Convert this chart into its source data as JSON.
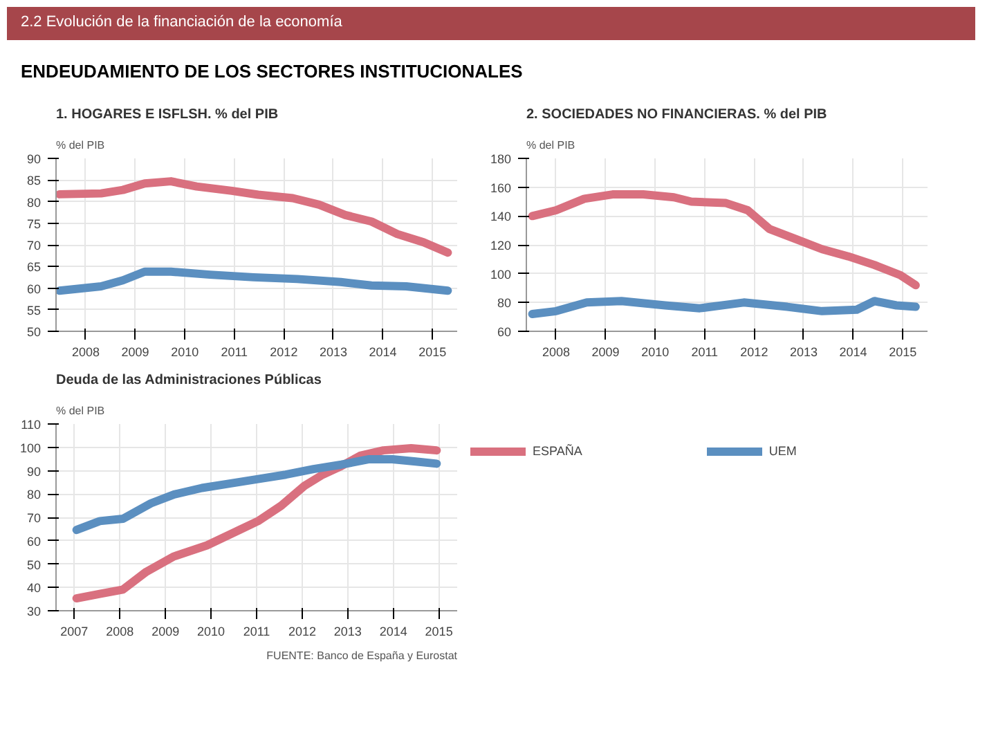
{
  "chart_data": [
    {
      "type": "line",
      "title": "1. HOGARES E ISFLSH. % del PIB",
      "ylabel": "% del PIB",
      "annotations": [
        "2.2 Evolución de la financiación de la economía",
        "ENDEUDAMIENTO DE LOS SECTORES INSTITUCIONALES"
      ],
      "xlim": [
        2007.4,
        2015.5
      ],
      "xticks": [
        2008,
        2009,
        2010,
        2011,
        2012,
        2013,
        2014,
        2015
      ],
      "ylim": [
        50,
        90
      ],
      "yticks": [
        50,
        55,
        60,
        65,
        70,
        75,
        80,
        85,
        90
      ],
      "grid": true,
      "series": [
        {
          "color": "#d9707f",
          "x": [
            2007.47,
            2008.31,
            2008.75,
            2009.19,
            2009.72,
            2010.24,
            2010.95,
            2011.48,
            2012.18,
            2012.71,
            2013.24,
            2013.77,
            2014.29,
            2014.82,
            2015.31
          ],
          "values": [
            81.7,
            81.9,
            82.7,
            84.2,
            84.7,
            83.5,
            82.5,
            81.6,
            80.8,
            79.3,
            76.9,
            75.4,
            72.5,
            70.6,
            68.2
          ]
        },
        {
          "color": "#5b8fc0",
          "x": [
            2007.47,
            2008.31,
            2008.75,
            2009.19,
            2009.72,
            2010.51,
            2011.39,
            2012.27,
            2013.15,
            2013.77,
            2014.47,
            2015.31
          ],
          "values": [
            59.4,
            60.4,
            61.8,
            63.8,
            63.8,
            63.1,
            62.5,
            62.1,
            61.4,
            60.6,
            60.4,
            59.4
          ]
        }
      ]
    },
    {
      "type": "line",
      "title": "2. SOCIEDADES NO FINANCIERAS. % del PIB",
      "ylabel": "% del PIB",
      "xlim": [
        2007.4,
        2015.5
      ],
      "xticks": [
        2008,
        2009,
        2010,
        2011,
        2012,
        2013,
        2014,
        2015
      ],
      "ylim": [
        60,
        180
      ],
      "yticks": [
        60,
        80,
        100,
        120,
        140,
        160,
        180
      ],
      "grid": true,
      "series": [
        {
          "color": "#d9707f",
          "x": [
            2007.52,
            2008.0,
            2008.57,
            2009.14,
            2009.76,
            2010.38,
            2010.73,
            2011.43,
            2011.87,
            2012.31,
            2012.84,
            2013.37,
            2013.9,
            2014.43,
            2014.95,
            2015.26
          ],
          "values": [
            140,
            144,
            152,
            155,
            155,
            153,
            150,
            149,
            144,
            131,
            124,
            117,
            112,
            106,
            99,
            92
          ]
        },
        {
          "color": "#5b8fc0",
          "x": [
            2007.52,
            2008.0,
            2008.62,
            2009.32,
            2010.2,
            2010.9,
            2011.79,
            2012.67,
            2013.37,
            2014.07,
            2014.43,
            2014.87,
            2015.26
          ],
          "values": [
            72,
            74,
            80,
            81,
            78,
            76,
            80,
            77,
            74,
            75,
            81,
            78,
            77
          ]
        }
      ]
    },
    {
      "type": "line",
      "title": "Deuda de las Administraciones Públicas",
      "ylabel": "% del PIB",
      "annotations": [
        "FUENTE: Banco de España y Eurostat"
      ],
      "xlim": [
        2006.6,
        2015.4
      ],
      "xticks": [
        2007,
        2008,
        2009,
        2010,
        2011,
        2012,
        2013,
        2014,
        2015
      ],
      "ylim": [
        30,
        110
      ],
      "yticks": [
        30,
        40,
        50,
        60,
        70,
        80,
        90,
        100,
        110
      ],
      "grid": true,
      "legend": "right",
      "series": [
        {
          "name": "ESPAÑA",
          "color": "#d9707f",
          "x": [
            2007.05,
            2007.56,
            2008.07,
            2008.58,
            2009.19,
            2009.91,
            2010.62,
            2011.03,
            2011.54,
            2012.05,
            2012.45,
            2012.86,
            2013.27,
            2013.78,
            2014.39,
            2014.95
          ],
          "values": [
            35.3,
            37.2,
            39.1,
            46.7,
            53.3,
            58.0,
            64.6,
            68.4,
            75.0,
            83.5,
            88.3,
            92.0,
            96.4,
            98.7,
            99.6,
            98.7
          ]
        },
        {
          "name": "UEM",
          "color": "#5b8fc0",
          "x": [
            2007.05,
            2007.56,
            2008.07,
            2008.68,
            2009.19,
            2009.8,
            2010.41,
            2011.03,
            2011.64,
            2012.25,
            2012.86,
            2013.47,
            2013.98,
            2014.49,
            2014.95
          ],
          "values": [
            64.6,
            68.4,
            69.4,
            76.0,
            79.8,
            82.6,
            84.5,
            86.4,
            88.3,
            90.7,
            92.6,
            94.9,
            94.9,
            93.9,
            93.0
          ]
        }
      ]
    }
  ]
}
